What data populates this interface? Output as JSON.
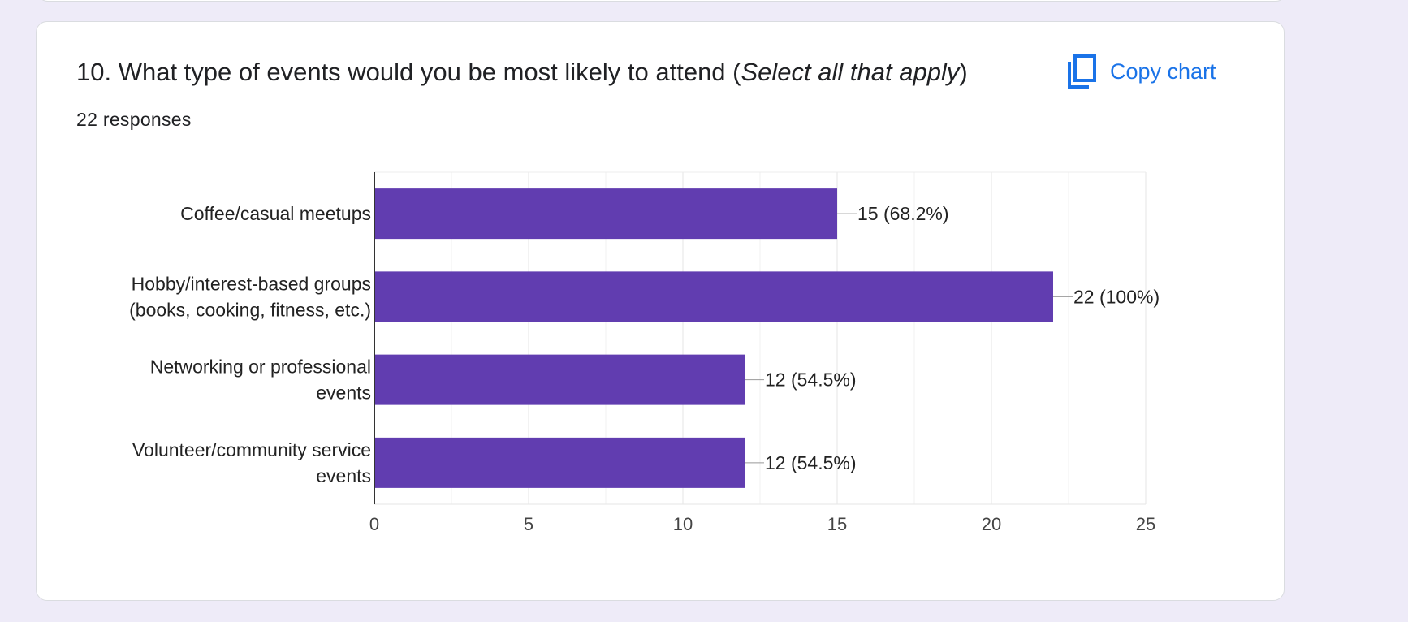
{
  "question": {
    "title_main": "10. What type of events would you be most likely to attend (",
    "title_italic": "Select all that apply",
    "title_end": ")",
    "responses": "22 responses"
  },
  "toolbar": {
    "copy_label": "Copy chart",
    "copy_icon": "copy-icon"
  },
  "colors": {
    "page_background": "#eeebf8",
    "bar": "#613db0",
    "link": "#1a73e8"
  },
  "chart_data": {
    "type": "bar",
    "orientation": "horizontal",
    "categories": [
      [
        "Coffee/casual meetups"
      ],
      [
        "Hobby/interest-based groups",
        "(books, cooking, fitness, etc.)"
      ],
      [
        "Networking or professional",
        "events"
      ],
      [
        "Volunteer/community service",
        "events"
      ]
    ],
    "values": [
      15,
      22,
      12,
      12
    ],
    "data_labels": [
      "15 (68.2%)",
      "22 (100%)",
      "12 (54.5%)",
      "12 (54.5%)"
    ],
    "xlim": [
      0,
      25
    ],
    "xticks": [
      0,
      5,
      10,
      15,
      20,
      25
    ],
    "grid": true,
    "legend": "none"
  }
}
